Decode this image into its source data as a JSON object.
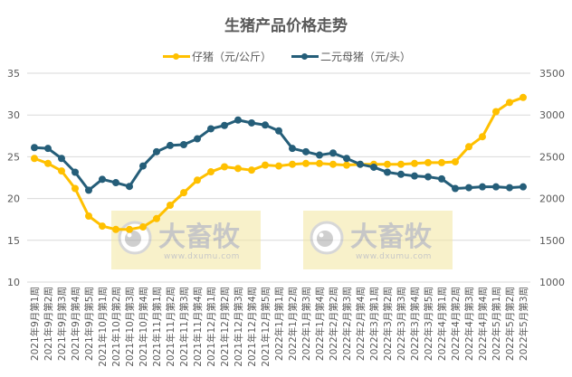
{
  "chart_data": {
    "type": "line",
    "title": "生猪产品价格走势",
    "xlabel": "",
    "ylabel_left": "",
    "ylabel_right": "",
    "ylim_left": [
      10,
      35
    ],
    "yticks_left": [
      10,
      15,
      20,
      25,
      30,
      35
    ],
    "ylim_right": [
      1000,
      3500
    ],
    "yticks_right": [
      1000,
      1500,
      2000,
      2500,
      3000,
      3500
    ],
    "grid": true,
    "legend_position": "top",
    "categories": [
      "2021年9月第1周",
      "2021年9月第2周",
      "2021年9月第3周",
      "2021年9月第4周",
      "2021年9月第5周",
      "2021年10月第1周",
      "2021年10月第2周",
      "2021年10月第3周",
      "2021年10月第4周",
      "2021年11月第1周",
      "2021年11月第2周",
      "2021年11月第3周",
      "2021年11月第4周",
      "2021年12月第1周",
      "2021年12月第2周",
      "2021年12月第3周",
      "2021年12月第4周",
      "2021年12月第5周",
      "2022年1月第1周",
      "2022年1月第2周",
      "2022年1月第3周",
      "2022年1月第4周",
      "2022年2月第2周",
      "2022年2月第3周",
      "2022年2月第4周",
      "2022年3月第1周",
      "2022年3月第2周",
      "2022年3月第3周",
      "2022年3月第4周",
      "2022年3月第5周",
      "2022年4月第1周",
      "2022年4月第2周",
      "2022年4月第3周",
      "2022年4月第4周",
      "2022年5月第1周",
      "2022年5月第2周",
      "2022年5月第3周"
    ],
    "series": [
      {
        "name": "仔猪（元/公斤）",
        "axis": "left",
        "color": "#FFC000",
        "values": [
          24.8,
          24.2,
          23.3,
          21.2,
          17.9,
          16.7,
          16.3,
          16.3,
          16.6,
          17.6,
          19.2,
          20.7,
          22.2,
          23.2,
          23.8,
          23.6,
          23.4,
          24.0,
          23.9,
          24.1,
          24.2,
          24.2,
          24.1,
          24.0,
          24.1,
          24.1,
          24.1,
          24.1,
          24.2,
          24.3,
          24.3,
          24.4,
          26.2,
          27.4,
          30.4,
          31.5,
          32.1
        ]
      },
      {
        "name": "二元母猪（元/头）",
        "axis": "right",
        "color": "#255E79",
        "values": [
          2610,
          2600,
          2480,
          2315,
          2100,
          2230,
          2190,
          2145,
          2390,
          2560,
          2635,
          2645,
          2715,
          2835,
          2875,
          2940,
          2905,
          2880,
          2810,
          2600,
          2560,
          2520,
          2545,
          2480,
          2410,
          2375,
          2315,
          2290,
          2270,
          2260,
          2235,
          2120,
          2130,
          2140,
          2140,
          2130,
          2140
        ]
      }
    ]
  },
  "watermark": {
    "brand": "大畜牧",
    "url": "www.dxumu.com"
  }
}
